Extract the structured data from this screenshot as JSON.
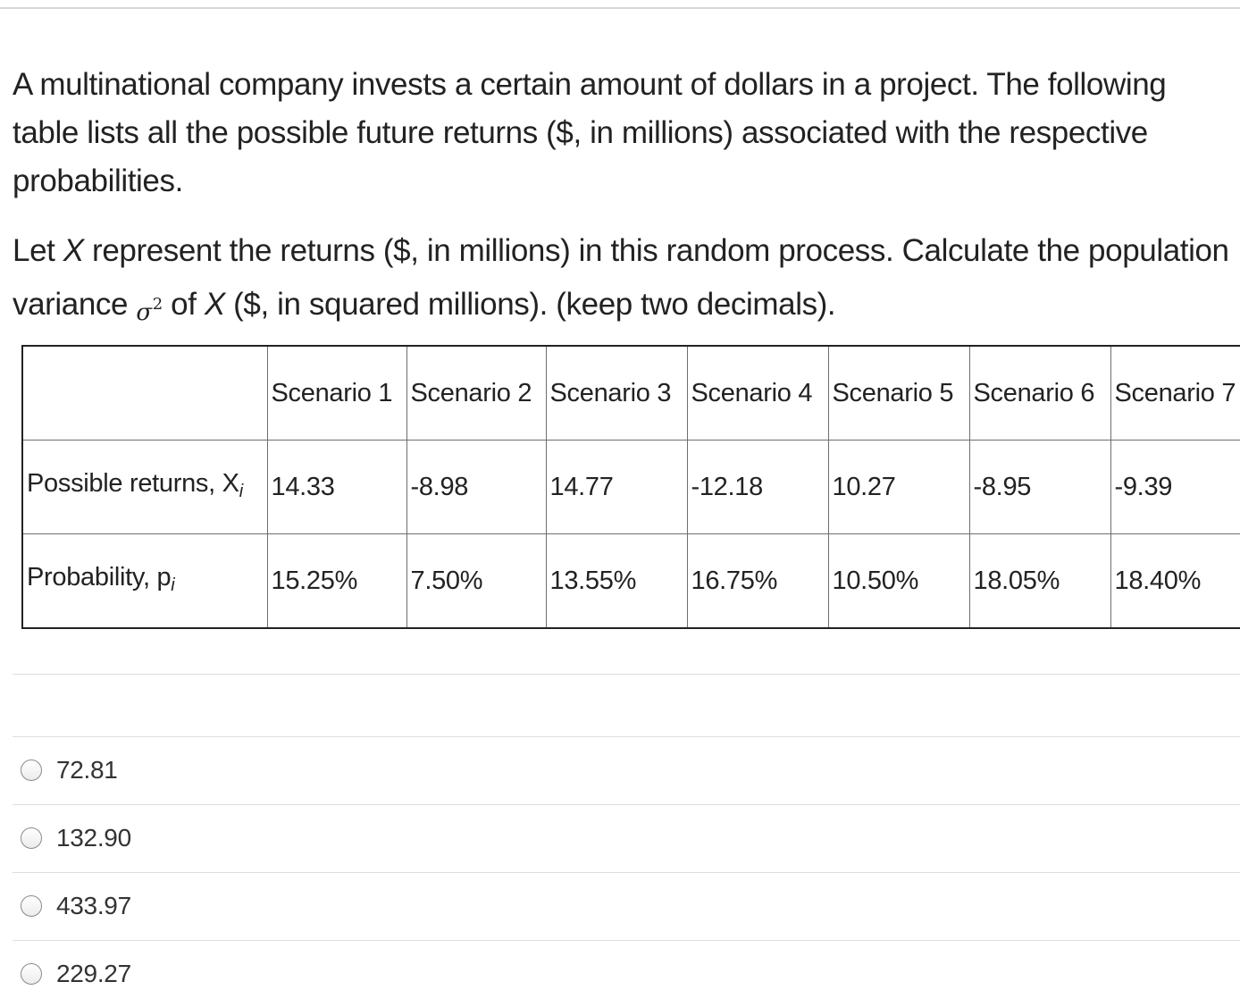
{
  "question": {
    "paragraph1": "A multinational company invests a certain amount of dollars in a project. The following table lists all the possible future returns ($, in millions) associated with the respective probabilities.",
    "p2_a": "Let ",
    "p2_var": "X",
    "p2_b": " represent the returns ($, in millions) in this random process. ",
    "p2_c": "Calculate the population variance ",
    "p2_sigma": "σ",
    "p2_sigma_exp": "2",
    "p2_d": " of ",
    "p2_var2": "X",
    "p2_e": " ($, in squared millions). (keep two decimals)."
  },
  "table": {
    "headers": [
      "",
      "Scenario 1",
      "Scenario 2",
      "Scenario 3",
      "Scenario 4",
      "Scenario 5",
      "Scenario 6",
      "Scenario 7"
    ],
    "returns_label": "Possible returns, X",
    "returns_sub": "i",
    "returns": [
      "14.33",
      "-8.98",
      "14.77",
      "-12.18",
      "10.27",
      "-8.95",
      "-9.39"
    ],
    "prob_label": "Probability, p",
    "prob_sub": "i",
    "probabilities": [
      "15.25%",
      "7.50%",
      "13.55%",
      "16.75%",
      "10.50%",
      "18.05%",
      "18.40%"
    ]
  },
  "options": [
    "72.81",
    "132.90",
    "433.97",
    "229.27"
  ]
}
